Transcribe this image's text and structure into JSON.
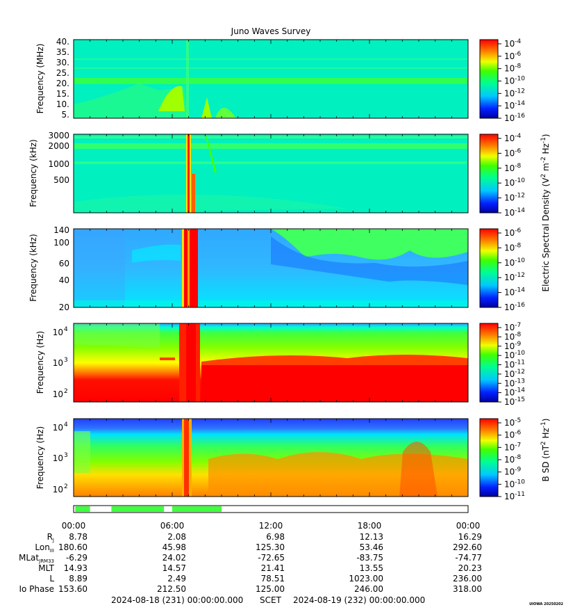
{
  "title": "Juno Waves Survey",
  "credit": "UIOWA 20250202",
  "panels": [
    {
      "id": "p1",
      "ylabel": "Frequency (MHz)",
      "yticks": [
        "40.",
        "35.",
        "30.",
        "25.",
        "20.",
        "15.",
        "10.",
        "5."
      ],
      "cbar_labels": [
        [
          "10",
          "-4"
        ],
        [
          "10",
          "-6"
        ],
        [
          "10",
          "-8"
        ],
        [
          "10",
          "-10"
        ],
        [
          "10",
          "-12"
        ],
        [
          "10",
          "-14"
        ],
        [
          "10",
          "-16"
        ]
      ]
    },
    {
      "id": "p2",
      "ylabel": "Frequency (kHz)",
      "yticks": [
        "3000",
        "2000",
        "1000",
        "500"
      ],
      "cbar_labels": [
        [
          "10",
          "-4"
        ],
        [
          "10",
          "-6"
        ],
        [
          "10",
          "-8"
        ],
        [
          "10",
          "-10"
        ],
        [
          "10",
          "-12"
        ],
        [
          "10",
          "-14"
        ]
      ]
    },
    {
      "id": "p3",
      "ylabel": "Frequency (kHz)",
      "yticks": [
        "140",
        "100",
        "60",
        "40",
        "20"
      ],
      "cbar_labels": [
        [
          "10",
          "-6"
        ],
        [
          "10",
          "-8"
        ],
        [
          "10",
          "-10"
        ],
        [
          "10",
          "-12"
        ],
        [
          "10",
          "-14"
        ],
        [
          "10",
          "-16"
        ]
      ]
    },
    {
      "id": "p4",
      "ylabel": "Frequency (Hz)",
      "yticks": [
        [
          "10",
          "4"
        ],
        [
          "10",
          "3"
        ],
        [
          "10",
          "2"
        ]
      ],
      "cbar_labels": [
        [
          "10",
          "-7"
        ],
        [
          "10",
          "-8"
        ],
        [
          "10",
          "-9"
        ],
        [
          "10",
          "-10"
        ],
        [
          "10",
          "-11"
        ],
        [
          "10",
          "-12"
        ],
        [
          "10",
          "-13"
        ],
        [
          "10",
          "-14"
        ],
        [
          "10",
          "-15"
        ]
      ]
    },
    {
      "id": "p5",
      "ylabel": "Frequency (Hz)",
      "yticks": [
        [
          "10",
          "4"
        ],
        [
          "10",
          "3"
        ],
        [
          "10",
          "2"
        ]
      ],
      "cbar_labels": [
        [
          "10",
          "-5"
        ],
        [
          "10",
          "-6"
        ],
        [
          "10",
          "-7"
        ],
        [
          "10",
          "-8"
        ],
        [
          "10",
          "-9"
        ],
        [
          "10",
          "-10"
        ],
        [
          "10",
          "-11"
        ]
      ]
    }
  ],
  "cbar_title_e": "Electric Spectral Density (V",
  "cbar_title_b": "B SD (nT",
  "chart_data": {
    "type": "heatmap",
    "title": "Juno Waves Survey",
    "x_ticks": [
      "00:00",
      "06:00",
      "12:00",
      "18:00",
      "00:00"
    ],
    "ephemeris": [
      {
        "label": "R",
        "sub": "J",
        "values": [
          "8.78",
          "2.08",
          "6.98",
          "12.13",
          "16.29"
        ]
      },
      {
        "label": "Lon",
        "sub": "III",
        "values": [
          "180.60",
          "45.98",
          "125.30",
          "53.46",
          "292.60"
        ]
      },
      {
        "label": "MLat",
        "sub": "JRM33",
        "values": [
          "-6.29",
          "24.02",
          "-72.65",
          "-83.75",
          "-74.77"
        ]
      },
      {
        "label": "MLT",
        "sub": "",
        "values": [
          "14.93",
          "14.57",
          "21.41",
          "13.55",
          "20.23"
        ]
      },
      {
        "label": "L",
        "sub": "",
        "values": [
          "8.89",
          "2.49",
          "78.51",
          "1023.00",
          "236.00"
        ]
      },
      {
        "label": "Io Phase",
        "sub": "",
        "values": [
          "153.60",
          "212.50",
          "125.00",
          "246.00",
          "318.00"
        ]
      }
    ],
    "footer": {
      "start": "2024-08-18 (231) 00:00:00.000",
      "scet": "SCET",
      "end": "2024-08-19 (232) 00:00:00.000"
    },
    "mode_bar_segments_hours": [
      [
        0.1,
        1.0
      ],
      [
        2.3,
        5.5
      ],
      [
        6.0,
        9.0
      ]
    ]
  }
}
